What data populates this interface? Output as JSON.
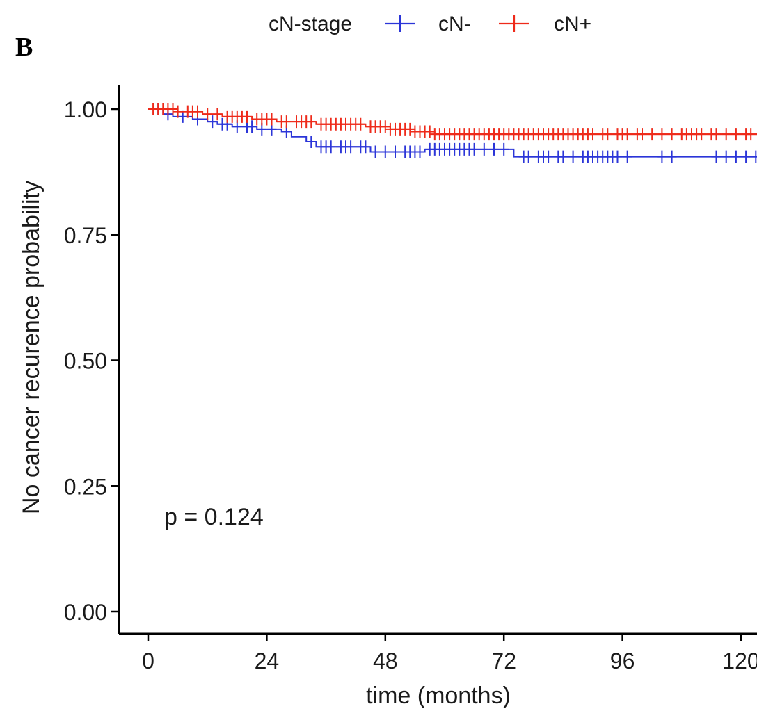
{
  "panel_label": "B",
  "chart_data": {
    "type": "line",
    "subtype": "kaplan-meier",
    "xlabel": "time (months)",
    "ylabel": "No cancer recurence probability",
    "xlim": [
      0,
      126
    ],
    "ylim": [
      0,
      1.0
    ],
    "x_ticks": [
      0,
      24,
      48,
      72,
      96,
      120
    ],
    "x_tick_labels": [
      "0",
      "24",
      "48",
      "72",
      "96",
      "120"
    ],
    "y_ticks": [
      0,
      0.25,
      0.5,
      0.75,
      1.0
    ],
    "y_tick_labels": [
      "0.00",
      "0.25",
      "0.50",
      "0.75",
      "1.00"
    ],
    "grid": false,
    "legend": {
      "title": "cN-stage",
      "position": "top",
      "entries": [
        "cN-",
        "cN+"
      ]
    },
    "annotation": "p = 0.124",
    "series": [
      {
        "name": "cN-",
        "color": "#2b35d8",
        "steps": [
          [
            0,
            1.0
          ],
          [
            3,
            0.99
          ],
          [
            5,
            0.985
          ],
          [
            9,
            0.98
          ],
          [
            12,
            0.975
          ],
          [
            14,
            0.97
          ],
          [
            17,
            0.965
          ],
          [
            22,
            0.96
          ],
          [
            27,
            0.955
          ],
          [
            29,
            0.945
          ],
          [
            32,
            0.935
          ],
          [
            34,
            0.925
          ],
          [
            45,
            0.915
          ],
          [
            56,
            0.92
          ],
          [
            74,
            0.905
          ],
          [
            126,
            0.905
          ]
        ],
        "censor_x": [
          2,
          4,
          7,
          10,
          13,
          15,
          16,
          18,
          20,
          21,
          23,
          25,
          28,
          33,
          35,
          36,
          37,
          39,
          40,
          41,
          43,
          44,
          46,
          48,
          50,
          52,
          53,
          54,
          55,
          57,
          58,
          59,
          60,
          61,
          62,
          63,
          64,
          65,
          66,
          68,
          70,
          72,
          76,
          77,
          79,
          80,
          81,
          83,
          84,
          86,
          88,
          89,
          90,
          91,
          92,
          93,
          94,
          95,
          97,
          104,
          106,
          115,
          117,
          119,
          121,
          123,
          125
        ]
      },
      {
        "name": "cN+",
        "color": "#ee2a1a",
        "steps": [
          [
            0,
            1.0
          ],
          [
            6,
            0.995
          ],
          [
            11,
            0.99
          ],
          [
            15,
            0.985
          ],
          [
            21,
            0.98
          ],
          [
            26,
            0.975
          ],
          [
            34,
            0.97
          ],
          [
            44,
            0.965
          ],
          [
            49,
            0.96
          ],
          [
            54,
            0.955
          ],
          [
            58,
            0.95
          ],
          [
            126,
            0.95
          ]
        ],
        "censor_x": [
          1,
          2,
          3,
          4,
          5,
          6,
          8,
          9,
          10,
          12,
          14,
          16,
          17,
          18,
          19,
          20,
          22,
          23,
          24,
          25,
          27,
          28,
          30,
          31,
          32,
          33,
          35,
          36,
          37,
          38,
          39,
          40,
          41,
          42,
          43,
          45,
          46,
          47,
          48,
          49,
          50,
          51,
          52,
          53,
          54,
          55,
          56,
          57,
          58,
          59,
          60,
          61,
          62,
          63,
          64,
          65,
          66,
          67,
          68,
          69,
          70,
          71,
          72,
          73,
          74,
          75,
          76,
          77,
          78,
          79,
          80,
          81,
          82,
          83,
          84,
          85,
          86,
          87,
          88,
          89,
          90,
          92,
          93,
          95,
          96,
          97,
          99,
          100,
          102,
          104,
          106,
          108,
          109,
          110,
          111,
          112,
          114,
          115,
          117,
          119,
          121,
          122,
          124,
          125
        ]
      }
    ]
  }
}
